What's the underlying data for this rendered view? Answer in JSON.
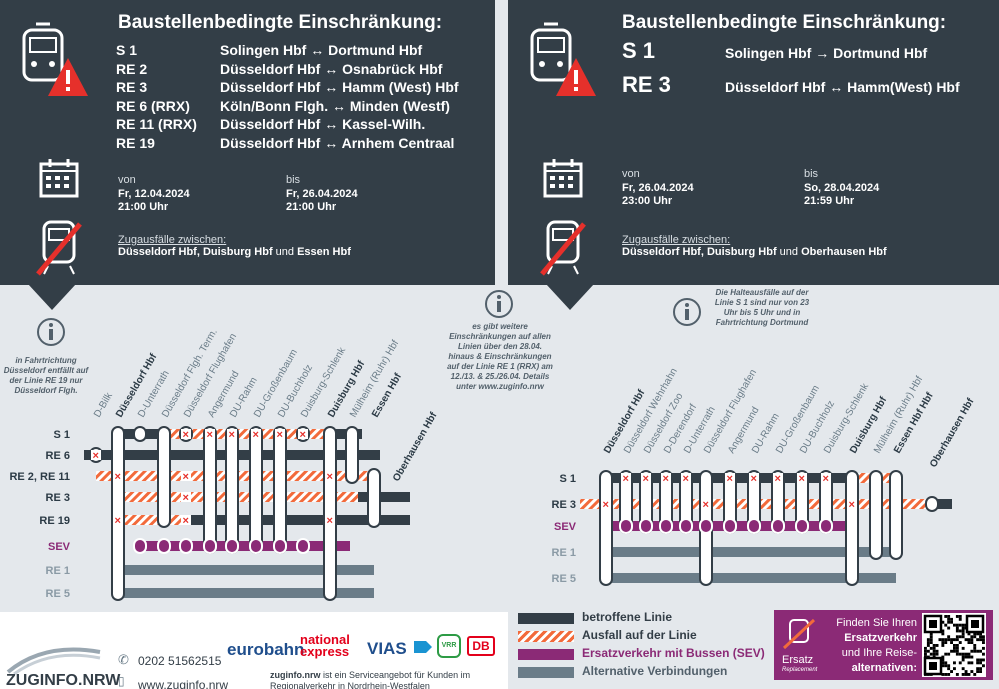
{
  "left": {
    "title": "Baustellenbedingte Einschränkung:",
    "routes": [
      {
        "line": "S 1",
        "route": "Solingen Hbf ↔ Dortmund Hbf"
      },
      {
        "line": "RE 2",
        "route": "Düsseldorf Hbf ↔ Osnabrück Hbf"
      },
      {
        "line": "RE 3",
        "route": "Düsseldorf Hbf ↔ Hamm (West) Hbf"
      },
      {
        "line": "RE 6 (RRX)",
        "route": "Köln/Bonn Flgh. ↔ Minden (Westf)"
      },
      {
        "line": "RE 11 (RRX)",
        "route": "Düsseldorf Hbf ↔ Kassel-Wilh."
      },
      {
        "line": "RE 19",
        "route": "Düsseldorf Hbf ↔ Arnhem Centraal"
      }
    ],
    "von_label": "von",
    "von_date": "Fr, 12.04.2024",
    "von_time": "21:00 Uhr",
    "bis_label": "bis",
    "bis_date": "Fr, 26.04.2024",
    "bis_time": "21:00 Uhr",
    "ausfall_label": "Zugausfälle zwischen:",
    "ausfall_bold1": "Düsseldorf Hbf, Duisburg Hbf",
    "ausfall_und": "und",
    "ausfall_bold2": "Essen Hbf",
    "note": "in Fahrtrichtung Düsseldorf entfällt auf der Linie RE 19 nur Düsseldorf Flgh.",
    "stations": [
      "D-Bilk",
      "Düsseldorf Hbf",
      "D-Unterrath",
      "Düsseldorf Flgh. Term.",
      "Düsseldorf Flughafen",
      "Angermund",
      "DU-Rahm",
      "DU-Großenbaum",
      "DU-Buchholz",
      "Duisburg-Schlenk",
      "Duisburg Hbf",
      "Mülheim (Ruhr) Hbf",
      "Essen Hbf",
      "Oberhausen Hbf"
    ],
    "lines": [
      "S 1",
      "RE 6",
      "RE 2, RE 11",
      "RE 3",
      "RE 19",
      "SEV",
      "RE 1",
      "RE 5"
    ]
  },
  "right": {
    "title": "Baustellenbedingte Einschränkung:",
    "routes": [
      {
        "line": "S 1",
        "route": "Solingen Hbf → Dortmund Hbf"
      },
      {
        "line": "RE 3",
        "route": "Düsseldorf Hbf ↔ Hamm(West) Hbf"
      }
    ],
    "von_label": "von",
    "von_date": "Fr, 26.04.2024",
    "von_time": "23:00 Uhr",
    "bis_label": "bis",
    "bis_date": "So, 28.04.2024",
    "bis_time": "21:59 Uhr",
    "ausfall_label": "Zugausfälle zwischen:",
    "ausfall_bold1": "Düsseldorf Hbf, Duisburg Hbf",
    "ausfall_und": "und",
    "ausfall_bold2": "Oberhausen Hbf",
    "note": "Die Halteausfälle auf der Linie S 1 sind nur von 23 Uhr bis 5 Uhr und in Fahrtrichtung Dortmund",
    "stations": [
      "Düsseldorf Hbf",
      "Düsseldorf Wehrhahn",
      "Düsseldorf Zoo",
      "D-Derendorf",
      "D-Unterrath",
      "Düsseldorf Flughafen",
      "Angermund",
      "DU-Rahm",
      "DU-Großenbaum",
      "DU-Buchholz",
      "Duisburg-Schlenk",
      "Duisburg Hbf",
      "Mülheim (Ruhr) Hbf",
      "Essen Hbf Hbf",
      "Oberhausen Hbf"
    ],
    "lines": [
      "S 1",
      "RE 3",
      "SEV",
      "RE 1",
      "RE 5"
    ]
  },
  "center_note": "es gibt weitere Einschränkungen auf allen Linien über den 28.04. hinaus & Einschränkungen auf der Linie RE 1 (RRX) am 12./13. & 25./26.04. Details unter www.zuginfo.nrw",
  "legend": {
    "affected": "betroffene Linie",
    "cancelled": "Ausfall auf der Linie",
    "sev": "Ersatzverkehr mit Bussen (SEV)",
    "alternative": "Alternative Verbindungen"
  },
  "footer": {
    "phone": "0202 51562515",
    "web": "www.zuginfo.nrw",
    "logo": "ZUGINFO.NRW",
    "brands": [
      "eurobahn",
      "national express",
      "VIAS",
      "VRR",
      "DB"
    ],
    "service_bold": "zuginfo.nrw",
    "service_text": "ist ein Serviceangebot für Kunden im Regionalverkehr in Nordrhein-Westfalen"
  },
  "ersatz": {
    "line1": "Finden Sie Ihren",
    "line2": "Ersatzverkehr",
    "line3": "und Ihre Reise-",
    "line4": "alternativen:",
    "logo": "Ersatz",
    "logo_sub": "Replacement"
  },
  "colors": {
    "dark": "#333e47",
    "cancel": "#f26a3b",
    "sev": "#8b2a76",
    "alt": "#6a7c88",
    "warn": "#e6302b"
  }
}
